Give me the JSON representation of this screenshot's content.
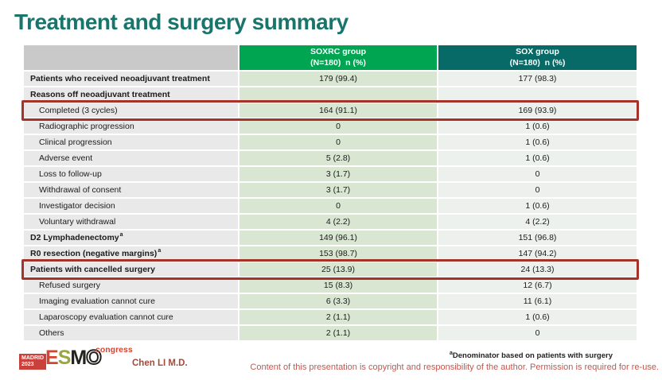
{
  "slide": {
    "title": "Treatment and surgery summary",
    "colors": {
      "title_teal": "#19756b",
      "header_green": "#00a551",
      "header_teal": "#086a66",
      "highlight_red": "#a5332a",
      "copyright_red": "#c4574f",
      "soxrc_cell": "#d9e6d2",
      "sox_cell": "#ecf1ee",
      "label_cell": "#e9e9e9"
    },
    "table": {
      "columns": [
        {
          "title": "SOXRC group",
          "subtitle": "(N=180)  n (%)"
        },
        {
          "title": "SOX group",
          "subtitle": "(N=180)  n (%)"
        }
      ],
      "rows": [
        {
          "label": "Patients who received neoadjuvant treatment",
          "bold": true,
          "indent": false,
          "soxrc": "179 (99.4)",
          "sox": "177 (98.3)"
        },
        {
          "label": "Reasons off neoadjuvant treatment",
          "bold": true,
          "indent": false,
          "soxrc": "",
          "sox": ""
        },
        {
          "label": "Completed (3 cycles)",
          "bold": false,
          "indent": true,
          "highlight": true,
          "soxrc": "164 (91.1)",
          "sox": "169 (93.9)"
        },
        {
          "label": "Radiographic progression",
          "bold": false,
          "indent": true,
          "soxrc": "0",
          "sox": "1 (0.6)"
        },
        {
          "label": "Clinical progression",
          "bold": false,
          "indent": true,
          "soxrc": "0",
          "sox": "1 (0.6)"
        },
        {
          "label": "Adverse event",
          "bold": false,
          "indent": true,
          "soxrc": "5 (2.8)",
          "sox": "1 (0.6)"
        },
        {
          "label": "Loss to follow-up",
          "bold": false,
          "indent": true,
          "soxrc": "3 (1.7)",
          "sox": "0"
        },
        {
          "label": "Withdrawal of consent",
          "bold": false,
          "indent": true,
          "soxrc": "3 (1.7)",
          "sox": "0"
        },
        {
          "label": "Investigator decision",
          "bold": false,
          "indent": true,
          "soxrc": "0",
          "sox": "1 (0.6)"
        },
        {
          "label": "Voluntary withdrawal",
          "bold": false,
          "indent": true,
          "soxrc": "4 (2.2)",
          "sox": "4 (2.2)"
        },
        {
          "label": "D2 Lymphadenectomy",
          "sup": "a",
          "bold": true,
          "indent": false,
          "soxrc": "149 (96.1)",
          "sox": "151 (96.8)"
        },
        {
          "label": "R0 resection (negative margins)",
          "sup": "a",
          "bold": true,
          "indent": false,
          "soxrc": "153 (98.7)",
          "sox": "147 (94.2)"
        },
        {
          "label": "Patients with cancelled surgery",
          "bold": true,
          "indent": false,
          "highlight": true,
          "soxrc": "25 (13.9)",
          "sox": "24 (13.3)"
        },
        {
          "label": "Refused surgery",
          "bold": false,
          "indent": true,
          "soxrc": "15 (8.3)",
          "sox": "12 (6.7)"
        },
        {
          "label": "Imaging evaluation cannot cure",
          "bold": false,
          "indent": true,
          "soxrc": "6 (3.3)",
          "sox": "11 (6.1)"
        },
        {
          "label": "Laparoscopy evaluation cannot cure",
          "bold": false,
          "indent": true,
          "soxrc": "2 (1.1)",
          "sox": "1 (0.6)"
        },
        {
          "label": "Others",
          "bold": false,
          "indent": true,
          "soxrc": "2 (1.1)",
          "sox": "0"
        }
      ]
    },
    "footer": {
      "badge_line1": "MADRID",
      "badge_line2": "2023",
      "esmo_letters": [
        {
          "ch": "E",
          "color": "#d64431"
        },
        {
          "ch": "S",
          "color": "#9aa63f"
        },
        {
          "ch": "M",
          "color": "#23221f"
        },
        {
          "ch": "O",
          "color": "outline"
        }
      ],
      "congress": "congress",
      "presenter": "Chen LI M.D.",
      "footnote_sup": "a",
      "footnote_text": "Denominator based on patients with surgery",
      "copyright": "Content of this presentation is copyright and responsibility of the author. Permission is required for re-use."
    }
  }
}
